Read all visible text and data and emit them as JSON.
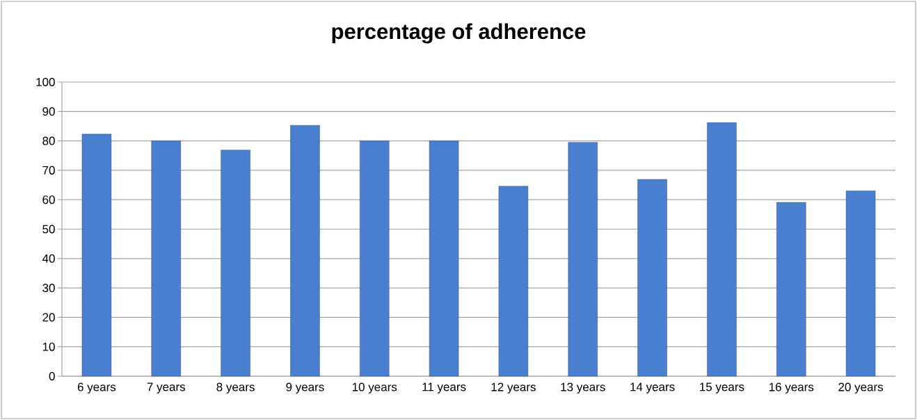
{
  "chart_data": {
    "type": "bar",
    "title": "percentage of adherence",
    "categories": [
      "6 years",
      "7 years",
      "8 years",
      "9 years",
      "10 years",
      "11 years",
      "12 years",
      "13 years",
      "14 years",
      "15 years",
      "16 years",
      "20 years"
    ],
    "values": [
      82.3,
      80,
      76.9,
      85.3,
      80,
      80,
      64.6,
      79.5,
      66.9,
      86.2,
      59.1,
      63.0
    ],
    "color": "#4a7fcf",
    "ylim": [
      0,
      100
    ],
    "yticks": [
      0,
      10,
      20,
      30,
      40,
      50,
      60,
      70,
      80,
      90,
      100
    ],
    "grid": "y"
  }
}
